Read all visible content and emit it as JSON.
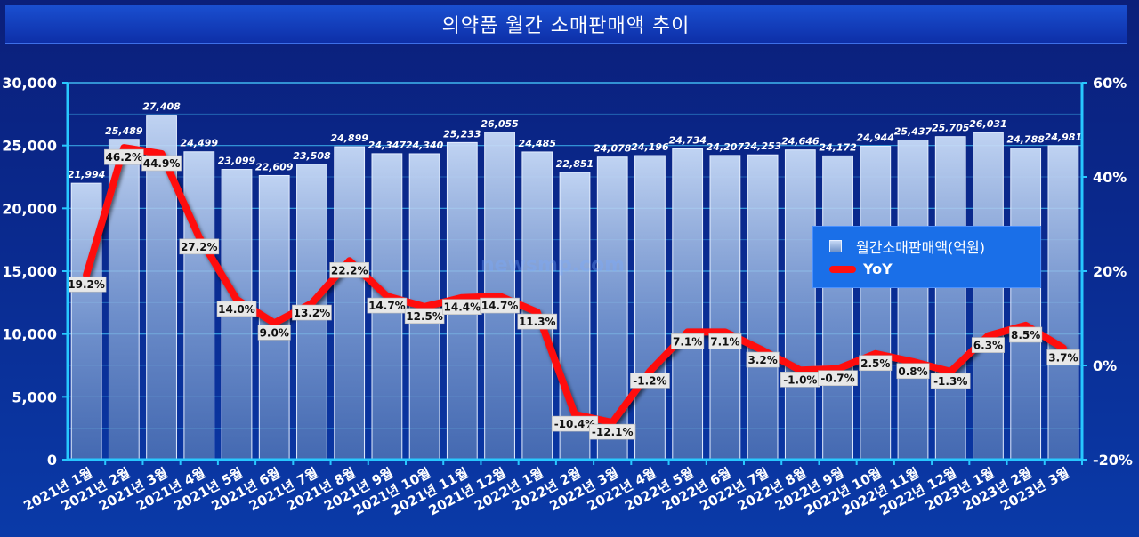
{
  "title": "의약품 월간 소매판매액 추이",
  "watermark": "newsmp.com",
  "legend": {
    "bar": "월간소매판매액(억원)",
    "line": "YoY"
  },
  "colors": {
    "line": "#ff1010",
    "grid": "#3fb8f0",
    "axis": "#28c8ff",
    "label_box": "#e8e8e8"
  },
  "chart_data": {
    "type": "bar",
    "categories": [
      "2021년 1월",
      "2021년 2월",
      "2021년 3월",
      "2021년 4월",
      "2021년 5월",
      "2021년 6월",
      "2021년 7월",
      "2021년 8월",
      "2021년 9월",
      "2021년 10월",
      "2021년 11월",
      "2021년 12월",
      "2022년 1월",
      "2022년 2월",
      "2022년 3월",
      "2022년 4월",
      "2022년 5월",
      "2022년 6월",
      "2022년 7월",
      "2022년 8월",
      "2022년 9월",
      "2022년 10월",
      "2022년 11월",
      "2022년 12월",
      "2023년 1월",
      "2023년 2월",
      "2023년 3월"
    ],
    "series": [
      {
        "name": "월간소매판매액(억원)",
        "axis": "left",
        "values": [
          21994,
          25489,
          27408,
          24499,
          23099,
          22609,
          23508,
          24899,
          24347,
          24340,
          25233,
          26055,
          24485,
          22851,
          24078,
          24196,
          24734,
          24207,
          24253,
          24646,
          24172,
          24944,
          25437,
          25705,
          26031,
          24788,
          24981
        ],
        "labels": [
          "21,994",
          "25,489",
          "27,408",
          "24,499",
          "23,099",
          "22,609",
          "23,508",
          "24,899",
          "24,347",
          "24,340",
          "25,233",
          "26,055",
          "24,485",
          "22,851",
          "24,078",
          "24,196",
          "24,734",
          "24,207",
          "24,253",
          "24,646",
          "24,172",
          "24,944",
          "25,437",
          "25,705",
          "26,031",
          "24,788",
          "24,981"
        ]
      },
      {
        "name": "YoY",
        "axis": "right",
        "values": [
          19.2,
          46.2,
          44.9,
          27.2,
          14.0,
          9.0,
          13.2,
          22.2,
          14.7,
          12.5,
          14.4,
          14.7,
          11.3,
          -10.4,
          -12.1,
          -1.2,
          7.1,
          7.1,
          3.2,
          -1.0,
          -0.7,
          2.5,
          0.8,
          -1.3,
          6.3,
          8.5,
          3.7
        ],
        "labels": [
          "19.2%",
          "46.2%",
          "44.9%",
          "27.2%",
          "14.0%",
          "9.0%",
          "13.2%",
          "22.2%",
          "14.7%",
          "12.5%",
          "14.4%",
          "14.7%",
          "11.3%",
          "-10.4%",
          "-12.1%",
          "-1.2%",
          "7.1%",
          "7.1%",
          "3.2%",
          "-1.0%",
          "-0.7%",
          "2.5%",
          "0.8%",
          "-1.3%",
          "6.3%",
          "8.5%",
          "3.7%"
        ]
      }
    ],
    "y_left": {
      "min": 0,
      "max": 30000,
      "ticks": [
        0,
        5000,
        10000,
        15000,
        20000,
        25000,
        30000
      ],
      "tick_labels": [
        "0",
        "5,000",
        "10,000",
        "15,000",
        "20,000",
        "25,000",
        "30,000"
      ]
    },
    "y_right": {
      "min": -20,
      "max": 60,
      "ticks": [
        -20,
        0,
        20,
        40,
        60
      ],
      "tick_labels": [
        "-20%",
        "0%",
        "20%",
        "40%",
        "60%"
      ]
    },
    "grid": true,
    "legend_position": "right"
  }
}
